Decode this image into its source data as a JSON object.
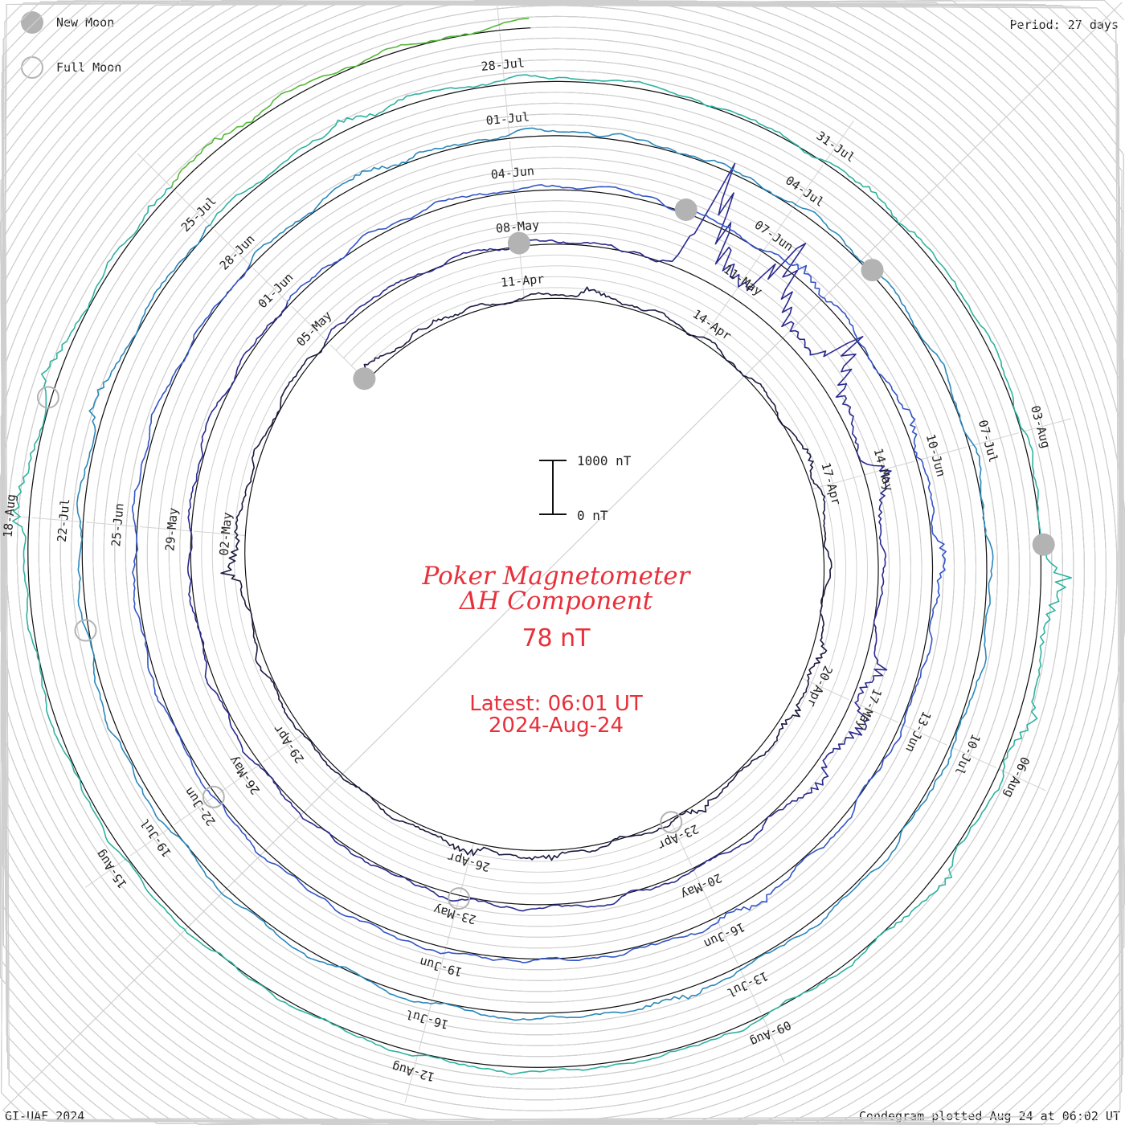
{
  "legend": {
    "new_moon": {
      "label": "New Moon",
      "color": "#b3b3b3"
    },
    "full_moon": {
      "label": "Full Moon",
      "color": "#b3b3b3"
    }
  },
  "period_label": "Period: 27 days",
  "footer_left": "GI-UAF 2024",
  "footer_right": "Condegram plotted Aug 24 at 06:02 UT",
  "center": {
    "title_line1": "Poker Magnetometer",
    "title_line2": "ΔH Component",
    "current_value": "78 nT",
    "latest_line1": "Latest: 06:01 UT",
    "latest_line2": "2024-Aug-24"
  },
  "scale_bar": {
    "top_label": "1000 nT",
    "bottom_label": "0 nT"
  },
  "chart_data": {
    "type": "line",
    "subtype": "condegram-spiral",
    "period_days": 27,
    "start_date": "2024-04-08",
    "end_date": "2024-08-24",
    "scale_nT_per_ring": 1000,
    "date_labels": [
      {
        "label": "11-Apr",
        "day": 3
      },
      {
        "label": "14-Apr",
        "day": 6
      },
      {
        "label": "17-Apr",
        "day": 9
      },
      {
        "label": "20-Apr",
        "day": 12
      },
      {
        "label": "23-Apr",
        "day": 15
      },
      {
        "label": "26-Apr",
        "day": 18
      },
      {
        "label": "29-Apr",
        "day": 21
      },
      {
        "label": "02-May",
        "day": 24
      },
      {
        "label": "05-May",
        "day": 27
      },
      {
        "label": "08-May",
        "day": 30
      },
      {
        "label": "11-May",
        "day": 33
      },
      {
        "label": "14-May",
        "day": 36
      },
      {
        "label": "17-May",
        "day": 39
      },
      {
        "label": "20-May",
        "day": 42
      },
      {
        "label": "23-May",
        "day": 45
      },
      {
        "label": "26-May",
        "day": 48
      },
      {
        "label": "29-May",
        "day": 51
      },
      {
        "label": "01-Jun",
        "day": 54
      },
      {
        "label": "04-Jun",
        "day": 57
      },
      {
        "label": "07-Jun",
        "day": 60
      },
      {
        "label": "10-Jun",
        "day": 63
      },
      {
        "label": "13-Jun",
        "day": 66
      },
      {
        "label": "16-Jun",
        "day": 69
      },
      {
        "label": "19-Jun",
        "day": 72
      },
      {
        "label": "22-Jun",
        "day": 75
      },
      {
        "label": "25-Jun",
        "day": 78
      },
      {
        "label": "28-Jun",
        "day": 81
      },
      {
        "label": "01-Jul",
        "day": 84
      },
      {
        "label": "04-Jul",
        "day": 87
      },
      {
        "label": "07-Jul",
        "day": 90
      },
      {
        "label": "10-Jul",
        "day": 93
      },
      {
        "label": "13-Jul",
        "day": 96
      },
      {
        "label": "16-Jul",
        "day": 99
      },
      {
        "label": "19-Jul",
        "day": 102
      },
      {
        "label": "22-Jul",
        "day": 105
      },
      {
        "label": "25-Jul",
        "day": 108
      },
      {
        "label": "28-Jul",
        "day": 111
      },
      {
        "label": "31-Jul",
        "day": 114
      },
      {
        "label": "03-Aug",
        "day": 117
      },
      {
        "label": "06-Aug",
        "day": 120
      },
      {
        "label": "09-Aug",
        "day": 123
      },
      {
        "label": "12-Aug",
        "day": 126
      },
      {
        "label": "15-Aug",
        "day": 129
      },
      {
        "label": "18-Aug",
        "day": 132
      }
    ],
    "new_moons": [
      {
        "date": "2024-04-08",
        "day": 0
      },
      {
        "date": "2024-05-08",
        "day": 30
      },
      {
        "date": "2024-06-06",
        "day": 59
      },
      {
        "date": "2024-07-05",
        "day": 88
      },
      {
        "date": "2024-08-04",
        "day": 118
      }
    ],
    "full_moons": [
      {
        "date": "2024-04-23",
        "day": 15
      },
      {
        "date": "2024-05-23",
        "day": 45
      },
      {
        "date": "2024-06-22",
        "day": 75
      },
      {
        "date": "2024-07-21",
        "day": 104
      },
      {
        "date": "2024-08-19",
        "day": 133
      }
    ],
    "disturbances": [
      {
        "day": 0.2,
        "peak_nT": 120
      },
      {
        "day": 1.5,
        "peak_nT": 90
      },
      {
        "day": 4.0,
        "peak_nT": 150
      },
      {
        "day": 8.5,
        "peak_nT": 180
      },
      {
        "day": 11.5,
        "peak_nT": 260
      },
      {
        "day": 12.5,
        "peak_nT": 240
      },
      {
        "day": 14.5,
        "peak_nT": 200
      },
      {
        "day": 16.8,
        "peak_nT": 160
      },
      {
        "day": 18.0,
        "peak_nT": 220
      },
      {
        "day": 23.5,
        "peak_nT": 380
      },
      {
        "day": 32.3,
        "peak_nT": 2200
      },
      {
        "day": 33.3,
        "peak_nT": 1500
      },
      {
        "day": 34.5,
        "peak_nT": 1100
      },
      {
        "day": 36.0,
        "peak_nT": 420
      },
      {
        "day": 38.5,
        "peak_nT": 380
      },
      {
        "day": 39.2,
        "peak_nT": 450
      },
      {
        "day": 40.0,
        "peak_nT": 300
      },
      {
        "day": 60.5,
        "peak_nT": 260
      },
      {
        "day": 62.5,
        "peak_nT": 220
      },
      {
        "day": 64.0,
        "peak_nT": 200
      },
      {
        "day": 68.5,
        "peak_nT": 180
      },
      {
        "day": 82.5,
        "peak_nT": 160
      },
      {
        "day": 96.5,
        "peak_nT": 150
      },
      {
        "day": 106.0,
        "peak_nT": 180
      },
      {
        "day": 109.5,
        "peak_nT": 170
      },
      {
        "day": 114.5,
        "peak_nT": 140
      },
      {
        "day": 118.3,
        "peak_nT": 500
      },
      {
        "day": 119.5,
        "peak_nT": 260
      },
      {
        "day": 121.0,
        "peak_nT": 190
      },
      {
        "day": 132.0,
        "peak_nT": 260
      },
      {
        "day": 133.2,
        "peak_nT": 180
      },
      {
        "day": 134.8,
        "peak_nT": 150
      },
      {
        "day": 135.5,
        "peak_nT": 120
      }
    ],
    "series_colors": [
      "#1a1a40",
      "#2a2a90",
      "#3355c8",
      "#2a88bb",
      "#2fb2a0",
      "#55b838",
      "#a6b31e",
      "#b58a10",
      "#c8501a",
      "#b81818"
    ]
  }
}
